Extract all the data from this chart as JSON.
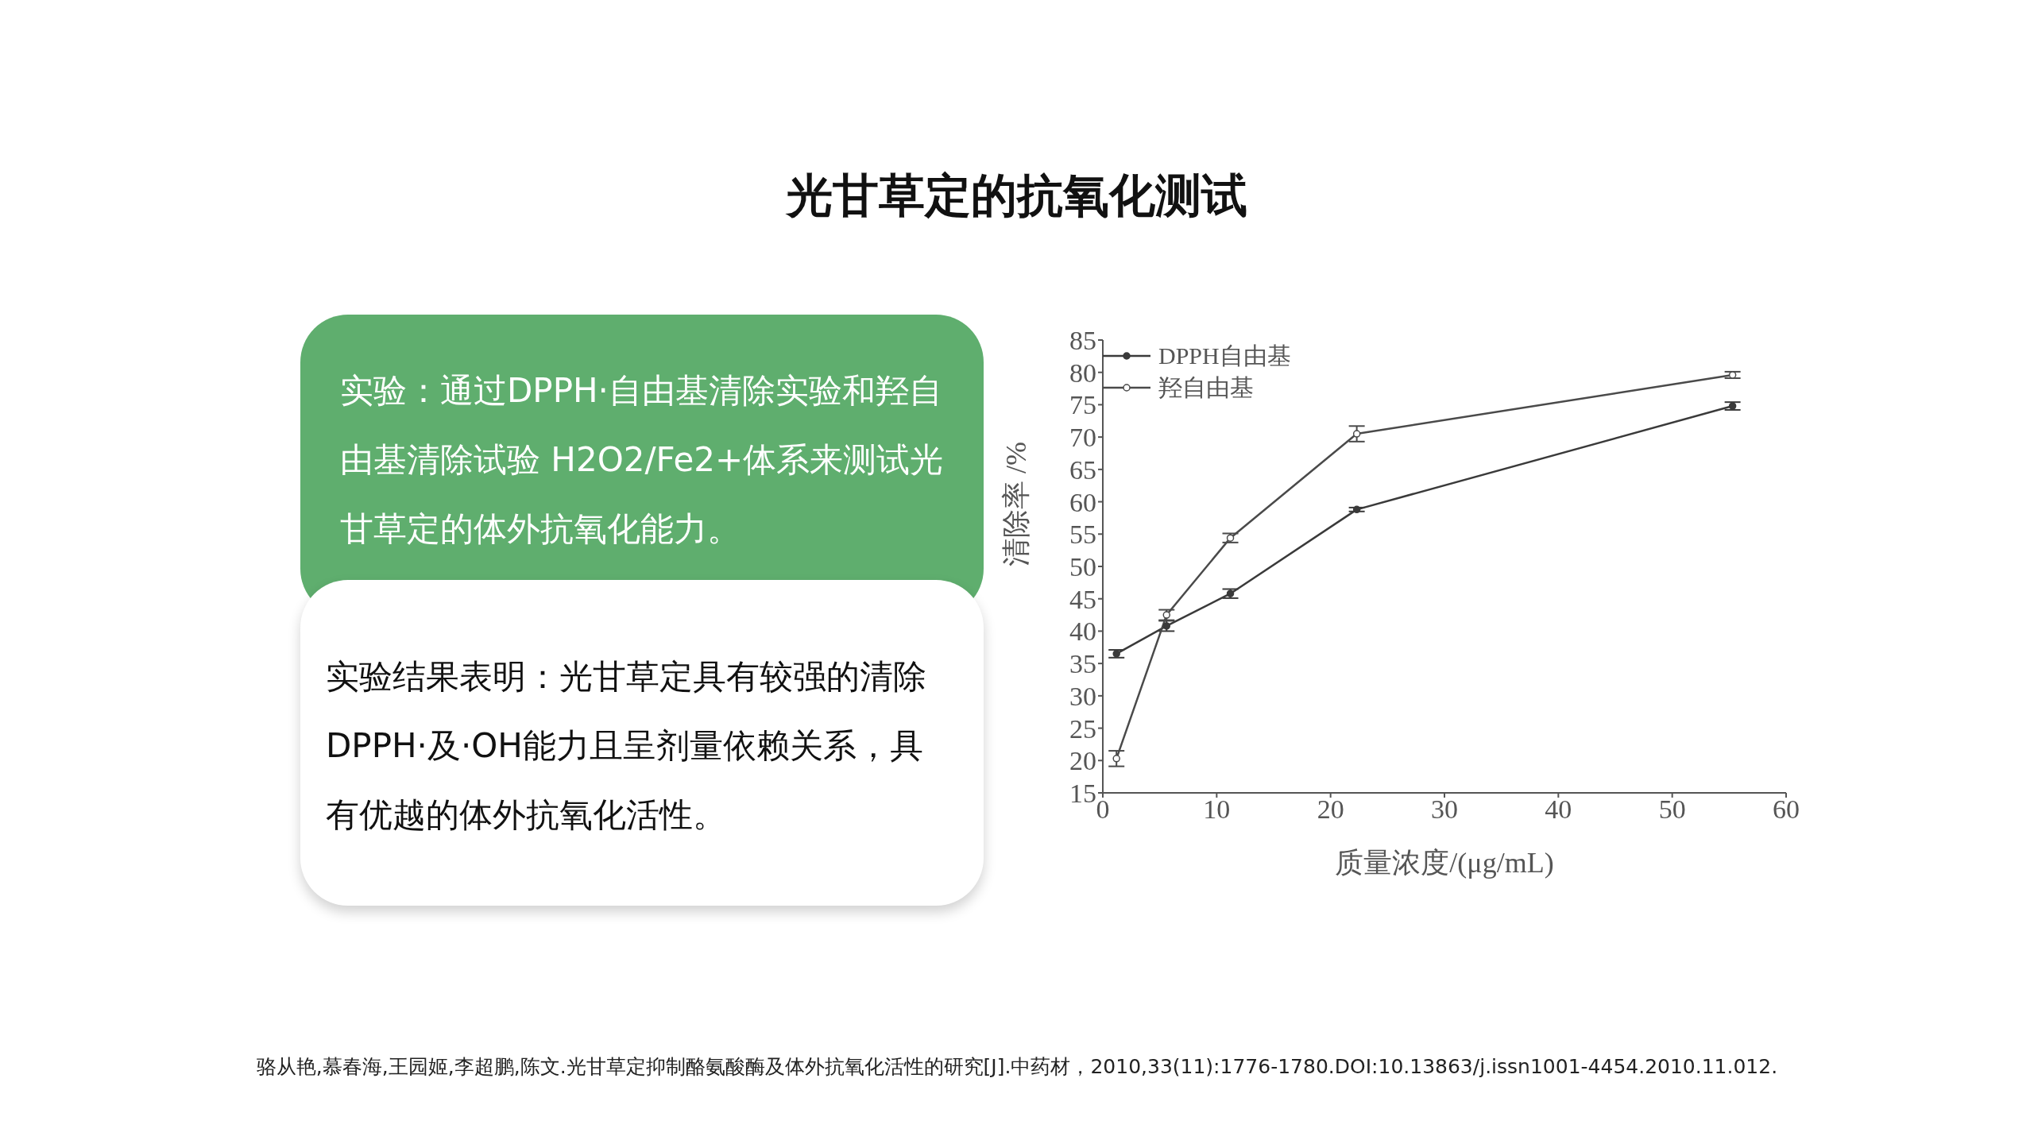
{
  "chart_data": {
    "type": "line",
    "title": "光甘草定的抗氧化测试",
    "xlabel": "质量浓度/(μg/mL)",
    "ylabel": "清除率 /%",
    "xlim": [
      0,
      60
    ],
    "xticks": [
      0,
      10,
      20,
      30,
      40,
      50,
      60
    ],
    "ylim": [
      15,
      85
    ],
    "yticks": [
      15,
      20,
      25,
      30,
      35,
      40,
      45,
      50,
      55,
      60,
      65,
      70,
      75,
      80,
      85
    ],
    "grid": false,
    "legend": "top left",
    "marker": "circle",
    "line_style": "solid",
    "x": [
      1.2,
      5.6,
      11.2,
      22.3,
      55.3
    ],
    "series": [
      {
        "name": "DPPH自由基",
        "color": "#3a3a3a",
        "values": [
          36.5,
          40.8,
          45.8,
          58.8,
          74.8
        ],
        "errors": [
          0.6,
          0.8,
          0.7,
          0.3,
          0.6
        ]
      },
      {
        "name": "羟自由基",
        "color": "#4a4a4a",
        "values": [
          20.3,
          42.5,
          54.4,
          70.5,
          79.6
        ],
        "errors": [
          1.2,
          0.8,
          0.7,
          1.2,
          0.5
        ]
      }
    ],
    "annotations": [
      "实验：通过DPPH·自由基清除实验和羟自由基清除试验 H2O2/Fe2+体系来测试光甘草定的体外抗氧化能力。",
      "实验结果表明：光甘草定具有较强的清除DPPH·及·OH能力且呈剂量依赖关系，具有优越的体外抗氧化活性。",
      "骆从艳,慕春海,王园姬,李超鹏,陈文.光甘草定抑制酪氨酸酶及体外抗氧化活性的研究[J].中药材，2010,33(11):1776-1780.DOI:10.13863/j.issn1001-4454.2010.11.012."
    ]
  }
}
